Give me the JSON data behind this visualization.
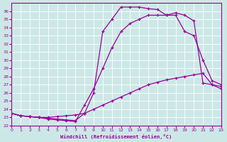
{
  "xlabel": "Windchill (Refroidissement éolien,°C)",
  "xlim": [
    0,
    23
  ],
  "ylim": [
    22,
    37
  ],
  "yticks": [
    22,
    23,
    24,
    25,
    26,
    27,
    28,
    29,
    30,
    31,
    32,
    33,
    34,
    35,
    36
  ],
  "xticks": [
    0,
    1,
    2,
    3,
    4,
    5,
    6,
    7,
    8,
    9,
    10,
    11,
    12,
    13,
    14,
    15,
    16,
    17,
    18,
    19,
    20,
    21,
    22,
    23
  ],
  "bg_color": "#cce8e6",
  "grid_color": "#b0d4d2",
  "line_color": "#990099",
  "line1_x": [
    0,
    1,
    2,
    3,
    4,
    5,
    6,
    7,
    8,
    9,
    10,
    11,
    12,
    13,
    14,
    15,
    16,
    17,
    18,
    19,
    20,
    21,
    22,
    23
  ],
  "line1_y": [
    23.5,
    23.2,
    23.1,
    23.0,
    23.0,
    23.1,
    23.2,
    23.3,
    23.5,
    24.0,
    24.5,
    25.0,
    25.5,
    26.0,
    26.5,
    27.0,
    27.3,
    27.6,
    27.8,
    28.0,
    28.2,
    28.4,
    27.0,
    26.8
  ],
  "line2_x": [
    0,
    1,
    2,
    3,
    4,
    5,
    6,
    7,
    8,
    9,
    10,
    11,
    12,
    13,
    14,
    15,
    16,
    17,
    18,
    19,
    20,
    21,
    22,
    23
  ],
  "line2_y": [
    23.5,
    23.2,
    23.1,
    23.0,
    22.8,
    22.7,
    22.6,
    22.5,
    24.5,
    26.5,
    29.0,
    31.5,
    33.5,
    34.5,
    35.0,
    35.5,
    35.5,
    35.5,
    35.5,
    33.5,
    33.0,
    30.0,
    27.5,
    27.0
  ],
  "line3_x": [
    0,
    1,
    2,
    3,
    4,
    5,
    6,
    7,
    8,
    9,
    10,
    11,
    12,
    13,
    14,
    15,
    16,
    17,
    18,
    19,
    20,
    21,
    22,
    23
  ],
  "line3_y": [
    23.5,
    23.2,
    23.1,
    23.0,
    22.9,
    22.8,
    22.7,
    22.6,
    23.5,
    26.0,
    33.5,
    35.0,
    36.5,
    36.5,
    36.5,
    36.3,
    36.2,
    35.5,
    35.8,
    35.5,
    34.8,
    27.2,
    27.0,
    26.5
  ]
}
